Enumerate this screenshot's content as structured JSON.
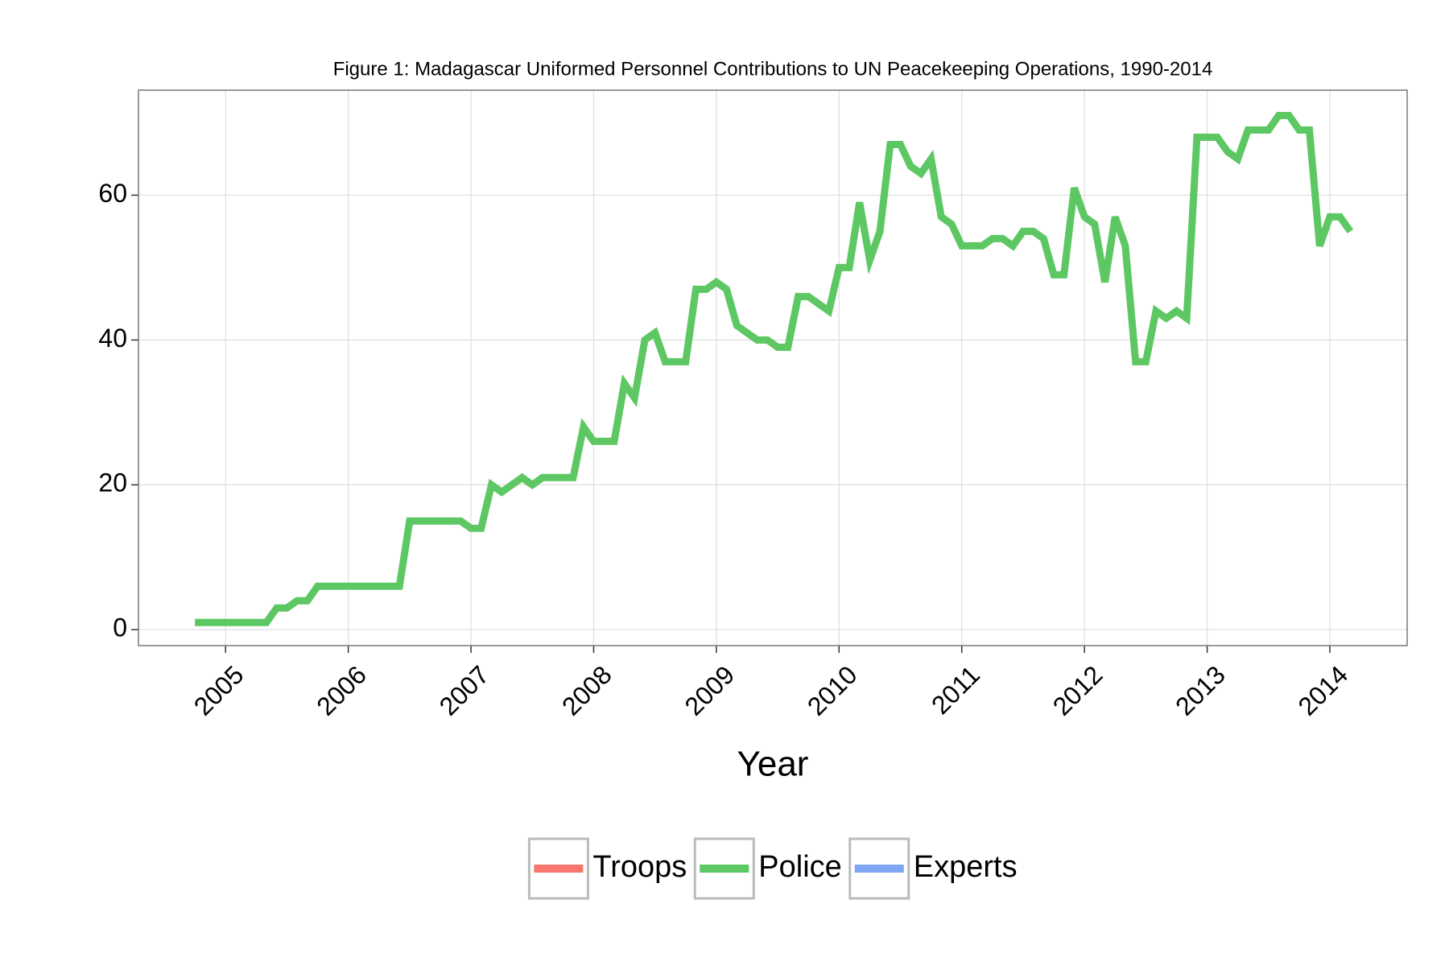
{
  "chart_data": {
    "type": "line",
    "title": "Figure 1: Madagascar Uniformed Personnel Contributions to UN Peacekeeping Operations, 1990-2014",
    "x_label": "Year",
    "x": [
      2004.75,
      2004.833,
      2004.917,
      2005.0,
      2005.083,
      2005.167,
      2005.25,
      2005.333,
      2005.417,
      2005.5,
      2005.583,
      2005.667,
      2005.75,
      2005.833,
      2005.917,
      2006.0,
      2006.083,
      2006.167,
      2006.25,
      2006.333,
      2006.417,
      2006.5,
      2006.583,
      2006.667,
      2006.75,
      2006.833,
      2006.917,
      2007.0,
      2007.083,
      2007.167,
      2007.25,
      2007.333,
      2007.417,
      2007.5,
      2007.583,
      2007.667,
      2007.75,
      2007.833,
      2007.917,
      2008.0,
      2008.083,
      2008.167,
      2008.25,
      2008.333,
      2008.417,
      2008.5,
      2008.583,
      2008.667,
      2008.75,
      2008.833,
      2008.917,
      2009.0,
      2009.083,
      2009.167,
      2009.25,
      2009.333,
      2009.417,
      2009.5,
      2009.583,
      2009.667,
      2009.75,
      2009.833,
      2009.917,
      2010.0,
      2010.083,
      2010.167,
      2010.25,
      2010.333,
      2010.417,
      2010.5,
      2010.583,
      2010.667,
      2010.75,
      2010.833,
      2010.917,
      2011.0,
      2011.083,
      2011.167,
      2011.25,
      2011.333,
      2011.417,
      2011.5,
      2011.583,
      2011.667,
      2011.75,
      2011.833,
      2011.917,
      2012.0,
      2012.083,
      2012.167,
      2012.25,
      2012.333,
      2012.417,
      2012.5,
      2012.583,
      2012.667,
      2012.75,
      2012.833,
      2012.917,
      2013.0,
      2013.083,
      2013.167,
      2013.25,
      2013.333,
      2013.417,
      2013.5,
      2013.583,
      2013.667,
      2013.75,
      2013.833,
      2013.917,
      2014.0,
      2014.083,
      2014.167
    ],
    "series": [
      {
        "name": "Troops",
        "color": "#F8766D",
        "values": [
          null,
          null,
          null,
          null,
          null,
          null,
          null,
          null,
          null,
          null,
          null,
          null,
          null,
          null,
          null,
          null,
          null,
          null,
          null,
          null,
          null,
          null,
          null,
          null,
          null,
          null,
          null,
          null,
          null,
          null,
          null,
          null,
          null,
          null,
          null,
          null,
          null,
          null,
          null,
          null,
          null,
          null,
          null,
          null,
          null,
          null,
          null,
          null,
          null,
          null,
          null,
          null,
          null,
          null,
          null,
          null,
          null,
          null,
          null,
          null,
          null,
          null,
          null,
          null,
          null,
          null,
          null,
          null,
          null,
          null,
          null,
          null,
          null,
          null,
          null,
          null,
          null,
          null,
          null,
          null,
          null,
          null,
          null,
          null,
          null,
          null,
          null,
          null,
          null,
          null,
          null,
          null,
          null,
          null,
          null,
          null,
          null,
          null,
          null,
          null,
          null,
          null,
          null,
          null,
          null,
          null,
          null,
          null,
          null,
          null,
          null,
          null,
          null,
          null
        ]
      },
      {
        "name": "Police",
        "color": "#5DC863",
        "values": [
          1,
          1,
          1,
          1,
          1,
          1,
          1,
          1,
          3,
          3,
          4,
          4,
          6,
          6,
          6,
          6,
          6,
          6,
          6,
          6,
          6,
          15,
          15,
          15,
          15,
          15,
          15,
          14,
          14,
          20,
          19,
          20,
          21,
          20,
          21,
          21,
          21,
          21,
          28,
          26,
          26,
          26,
          34,
          32,
          40,
          41,
          37,
          37,
          37,
          47,
          47,
          48,
          47,
          42,
          41,
          40,
          40,
          39,
          39,
          46,
          46,
          45,
          44,
          50,
          50,
          59,
          51,
          55,
          67,
          67,
          64,
          63,
          65,
          57,
          56,
          53,
          53,
          53,
          54,
          54,
          53,
          55,
          55,
          54,
          49,
          49,
          61,
          57,
          56,
          48,
          57,
          53,
          37,
          37,
          44,
          43,
          44,
          43,
          68,
          68,
          68,
          66,
          65,
          69,
          69,
          69,
          71,
          71,
          69,
          69,
          53,
          57,
          57,
          55
        ]
      },
      {
        "name": "Experts",
        "color": "#7FA6F2",
        "values": [
          null,
          null,
          null,
          null,
          null,
          null,
          null,
          null,
          null,
          null,
          null,
          null,
          null,
          null,
          null,
          null,
          null,
          null,
          null,
          null,
          null,
          null,
          null,
          null,
          null,
          null,
          null,
          null,
          null,
          null,
          null,
          null,
          null,
          null,
          null,
          null,
          null,
          null,
          null,
          null,
          null,
          null,
          null,
          null,
          null,
          null,
          null,
          null,
          null,
          null,
          null,
          null,
          null,
          null,
          null,
          null,
          null,
          null,
          null,
          null,
          null,
          null,
          null,
          null,
          null,
          null,
          null,
          null,
          null,
          null,
          null,
          null,
          null,
          null,
          null,
          null,
          null,
          null,
          null,
          null,
          null,
          null,
          null,
          null,
          null,
          null,
          null,
          null,
          null,
          null,
          null,
          null,
          null,
          null,
          null,
          null,
          null,
          null,
          null,
          null,
          null,
          null,
          null,
          null,
          null,
          null,
          null,
          null,
          null,
          null,
          null,
          null,
          null,
          null
        ]
      }
    ],
    "xlim": [
      2004.29,
      2014.63
    ],
    "xticks": [
      2005,
      2006,
      2007,
      2008,
      2009,
      2010,
      2011,
      2012,
      2013,
      2014
    ],
    "ylim": [
      -2.2,
      74.5
    ],
    "yticks": [
      0,
      20,
      40,
      60
    ],
    "grid": true,
    "legend": "bottom"
  }
}
